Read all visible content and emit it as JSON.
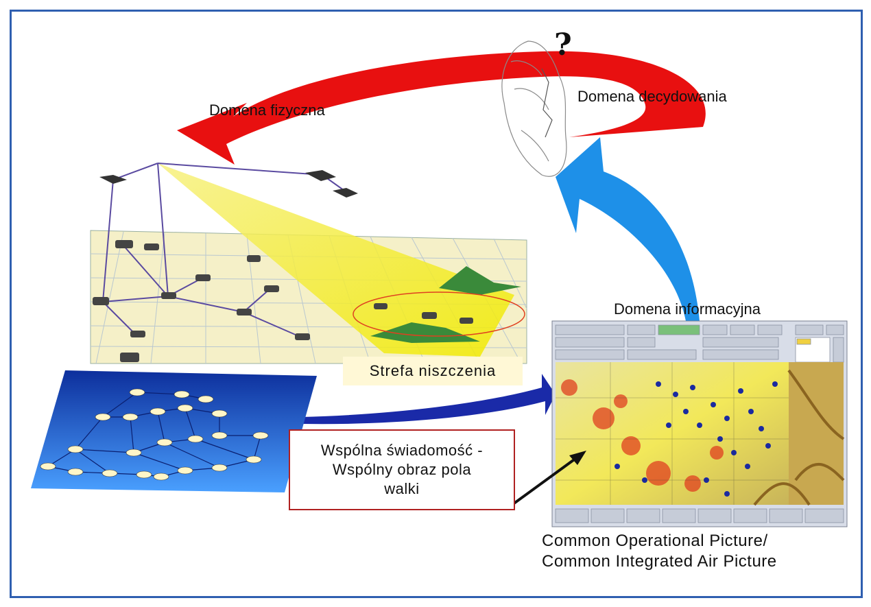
{
  "labels": {
    "question": "?",
    "physical_domain": "Domena fizyczna",
    "decision_domain": "Domena decydowania",
    "information_domain": "Domena informacyjna",
    "kill_zone": "Strefa niszczenia",
    "shared_awareness": "Wspólna świadomość -\nWspólny obraz pola\nwalki",
    "cop_caption": "Common Operational Picture/\nCommon Integrated Air Picture"
  },
  "colors": {
    "frame": "#2f5fb0",
    "red_arrow": "#e81010",
    "blue_arrow": "#1e90e8",
    "navy_arrow": "#1a2aa8",
    "sensor_beam": "#f3f000",
    "network_plane": "#1e50c8",
    "callout_border": "#b02020"
  },
  "icons": [
    "human-head-sketch-icon",
    "aircraft-icon",
    "tank-icon",
    "mountain-icon",
    "network-node-icon"
  ]
}
